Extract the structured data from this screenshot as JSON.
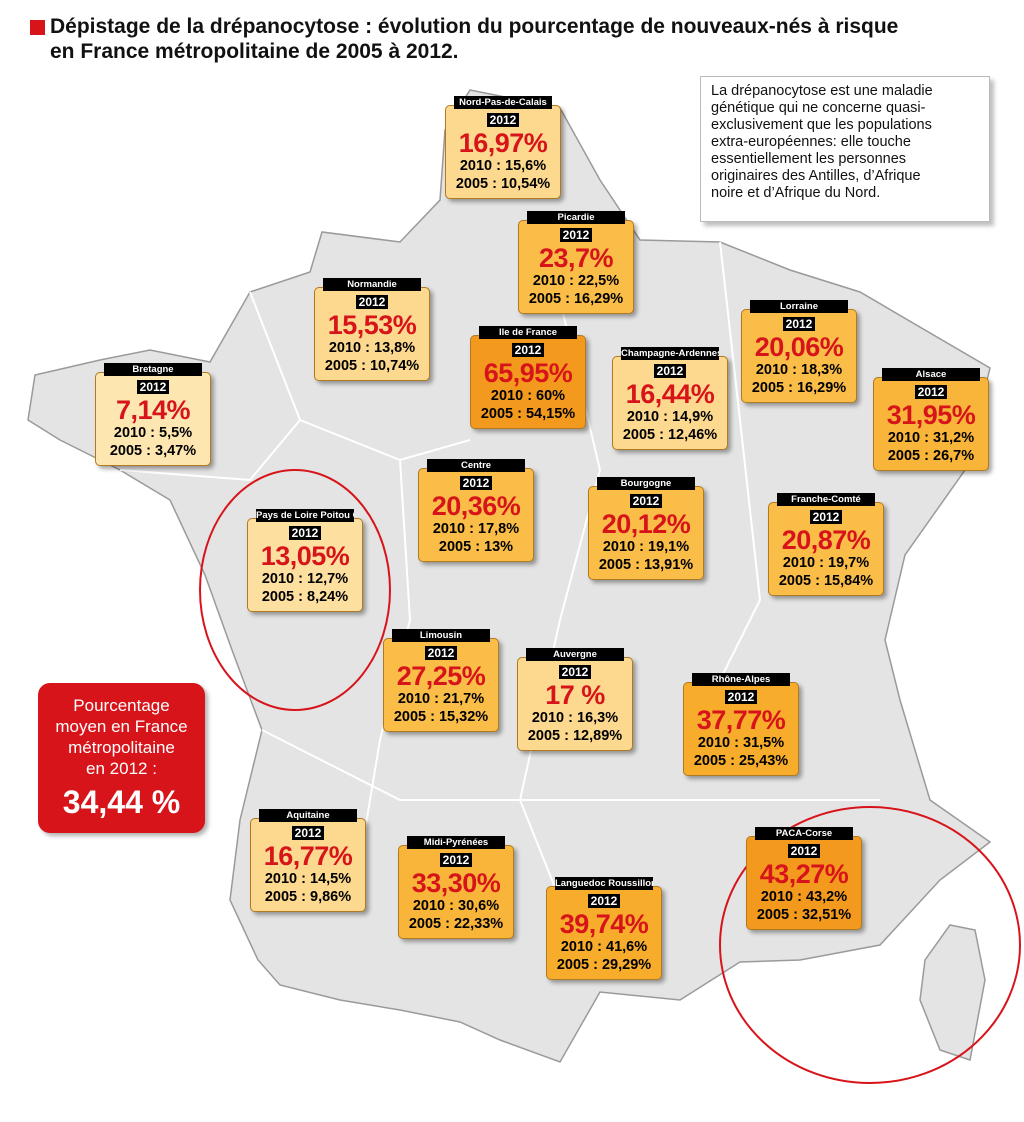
{
  "header": {
    "title_lines": [
      "Dépistage de la drépanocytose : évolution du pourcentage de nouveaux-nés à risque",
      "en France métropolitaine de 2005 à 2012."
    ]
  },
  "info_lines": [
    "La drépanocytose est une maladie",
    "génétique qui ne concerne quasi-",
    "exclusivement que les populations",
    "extra-européennes: elle touche",
    "essentiellement les personnes",
    "originaires des Antilles, d’Afrique",
    "noire et d’Afrique du Nord."
  ],
  "average": {
    "lines": [
      "Pourcentage",
      "moyen en France",
      "métropolitaine",
      "en 2012 :"
    ],
    "value": "34,44 %"
  },
  "regions": [
    {
      "name": "Nord-Pas-de-Calais",
      "year": "2012",
      "value": "16,97%",
      "line_2010": "2010 : 15,6%",
      "line_2005": "2005 : 10,54%",
      "color": "#fcd98e"
    },
    {
      "name": "Picardie",
      "year": "2012",
      "value": "23,7%",
      "line_2010": "2010 : 22,5%",
      "line_2005": "2005 : 16,29%",
      "color": "#f9bd48"
    },
    {
      "name": "Normandie",
      "year": "2012",
      "value": "15,53%",
      "line_2010": "2010 : 13,8%",
      "line_2005": "2005 : 10,74%",
      "color": "#fcd98e"
    },
    {
      "name": "Ile de France",
      "year": "2012",
      "value": "65,95%",
      "line_2010": "2010 : 60%",
      "line_2005": "2005 : 54,15%",
      "color": "#f39a1e"
    },
    {
      "name": "Champagne-Ardennes",
      "year": "2012",
      "value": "16,44%",
      "line_2010": "2010 : 14,9%",
      "line_2005": "2005 : 12,46%",
      "color": "#fcd98e"
    },
    {
      "name": "Lorraine",
      "year": "2012",
      "value": "20,06%",
      "line_2010": "2010 : 18,3%",
      "line_2005": "2005 : 16,29%",
      "color": "#f9bd48"
    },
    {
      "name": "Alsace",
      "year": "2012",
      "value": "31,95%",
      "line_2010": "2010 : 31,2%",
      "line_2005": "2005 : 26,7%",
      "color": "#f9b53a"
    },
    {
      "name": "Bretagne",
      "year": "2012",
      "value": "7,14%",
      "line_2010": "2010 : 5,5%",
      "line_2005": "2005 : 3,47%",
      "color": "#fde6b0"
    },
    {
      "name": "Pays de Loire Poitou Charente",
      "year": "2012",
      "value": "13,05%",
      "line_2010": "2010 : 12,7%",
      "line_2005": "2005 : 8,24%",
      "color": "#fde0a0"
    },
    {
      "name": "Centre",
      "year": "2012",
      "value": "20,36%",
      "line_2010": "2010 : 17,8%",
      "line_2005": "2005 : 13%",
      "color": "#f9bd48"
    },
    {
      "name": "Bourgogne",
      "year": "2012",
      "value": "20,12%",
      "line_2010": "2010 : 19,1%",
      "line_2005": "2005 : 13,91%",
      "color": "#f9bd48"
    },
    {
      "name": "Franche-Comté",
      "year": "2012",
      "value": "20,87%",
      "line_2010": "2010 : 19,7%",
      "line_2005": "2005 : 15,84%",
      "color": "#f9bd48"
    },
    {
      "name": "Limousin",
      "year": "2012",
      "value": "27,25%",
      "line_2010": "2010 : 21,7%",
      "line_2005": "2005 : 15,32%",
      "color": "#f9bd48"
    },
    {
      "name": "Auvergne",
      "year": "2012",
      "value": "17 %",
      "line_2010": "2010 : 16,3%",
      "line_2005": "2005 : 12,89%",
      "color": "#fcd98e"
    },
    {
      "name": "Rhône-Alpes",
      "year": "2012",
      "value": "37,77%",
      "line_2010": "2010 : 31,5%",
      "line_2005": "2005 : 25,43%",
      "color": "#f7ac2c"
    },
    {
      "name": "Aquitaine",
      "year": "2012",
      "value": "16,77%",
      "line_2010": "2010 : 14,5%",
      "line_2005": "2005 : 9,86%",
      "color": "#fcd98e"
    },
    {
      "name": "Midi-Pyrénées",
      "year": "2012",
      "value": "33,30%",
      "line_2010": "2010 : 30,6%",
      "line_2005": "2005 : 22,33%",
      "color": "#f9b53a"
    },
    {
      "name": "Languedoc Roussillon",
      "year": "2012",
      "value": "39,74%",
      "line_2010": "2010 : 41,6%",
      "line_2005": "2005 : 29,29%",
      "color": "#f7ac2c"
    },
    {
      "name": "PACA-Corse",
      "year": "2012",
      "value": "43,27%",
      "line_2010": "2010 : 43,2%",
      "line_2005": "2005 : 32,51%",
      "color": "#f39a1e"
    }
  ]
}
